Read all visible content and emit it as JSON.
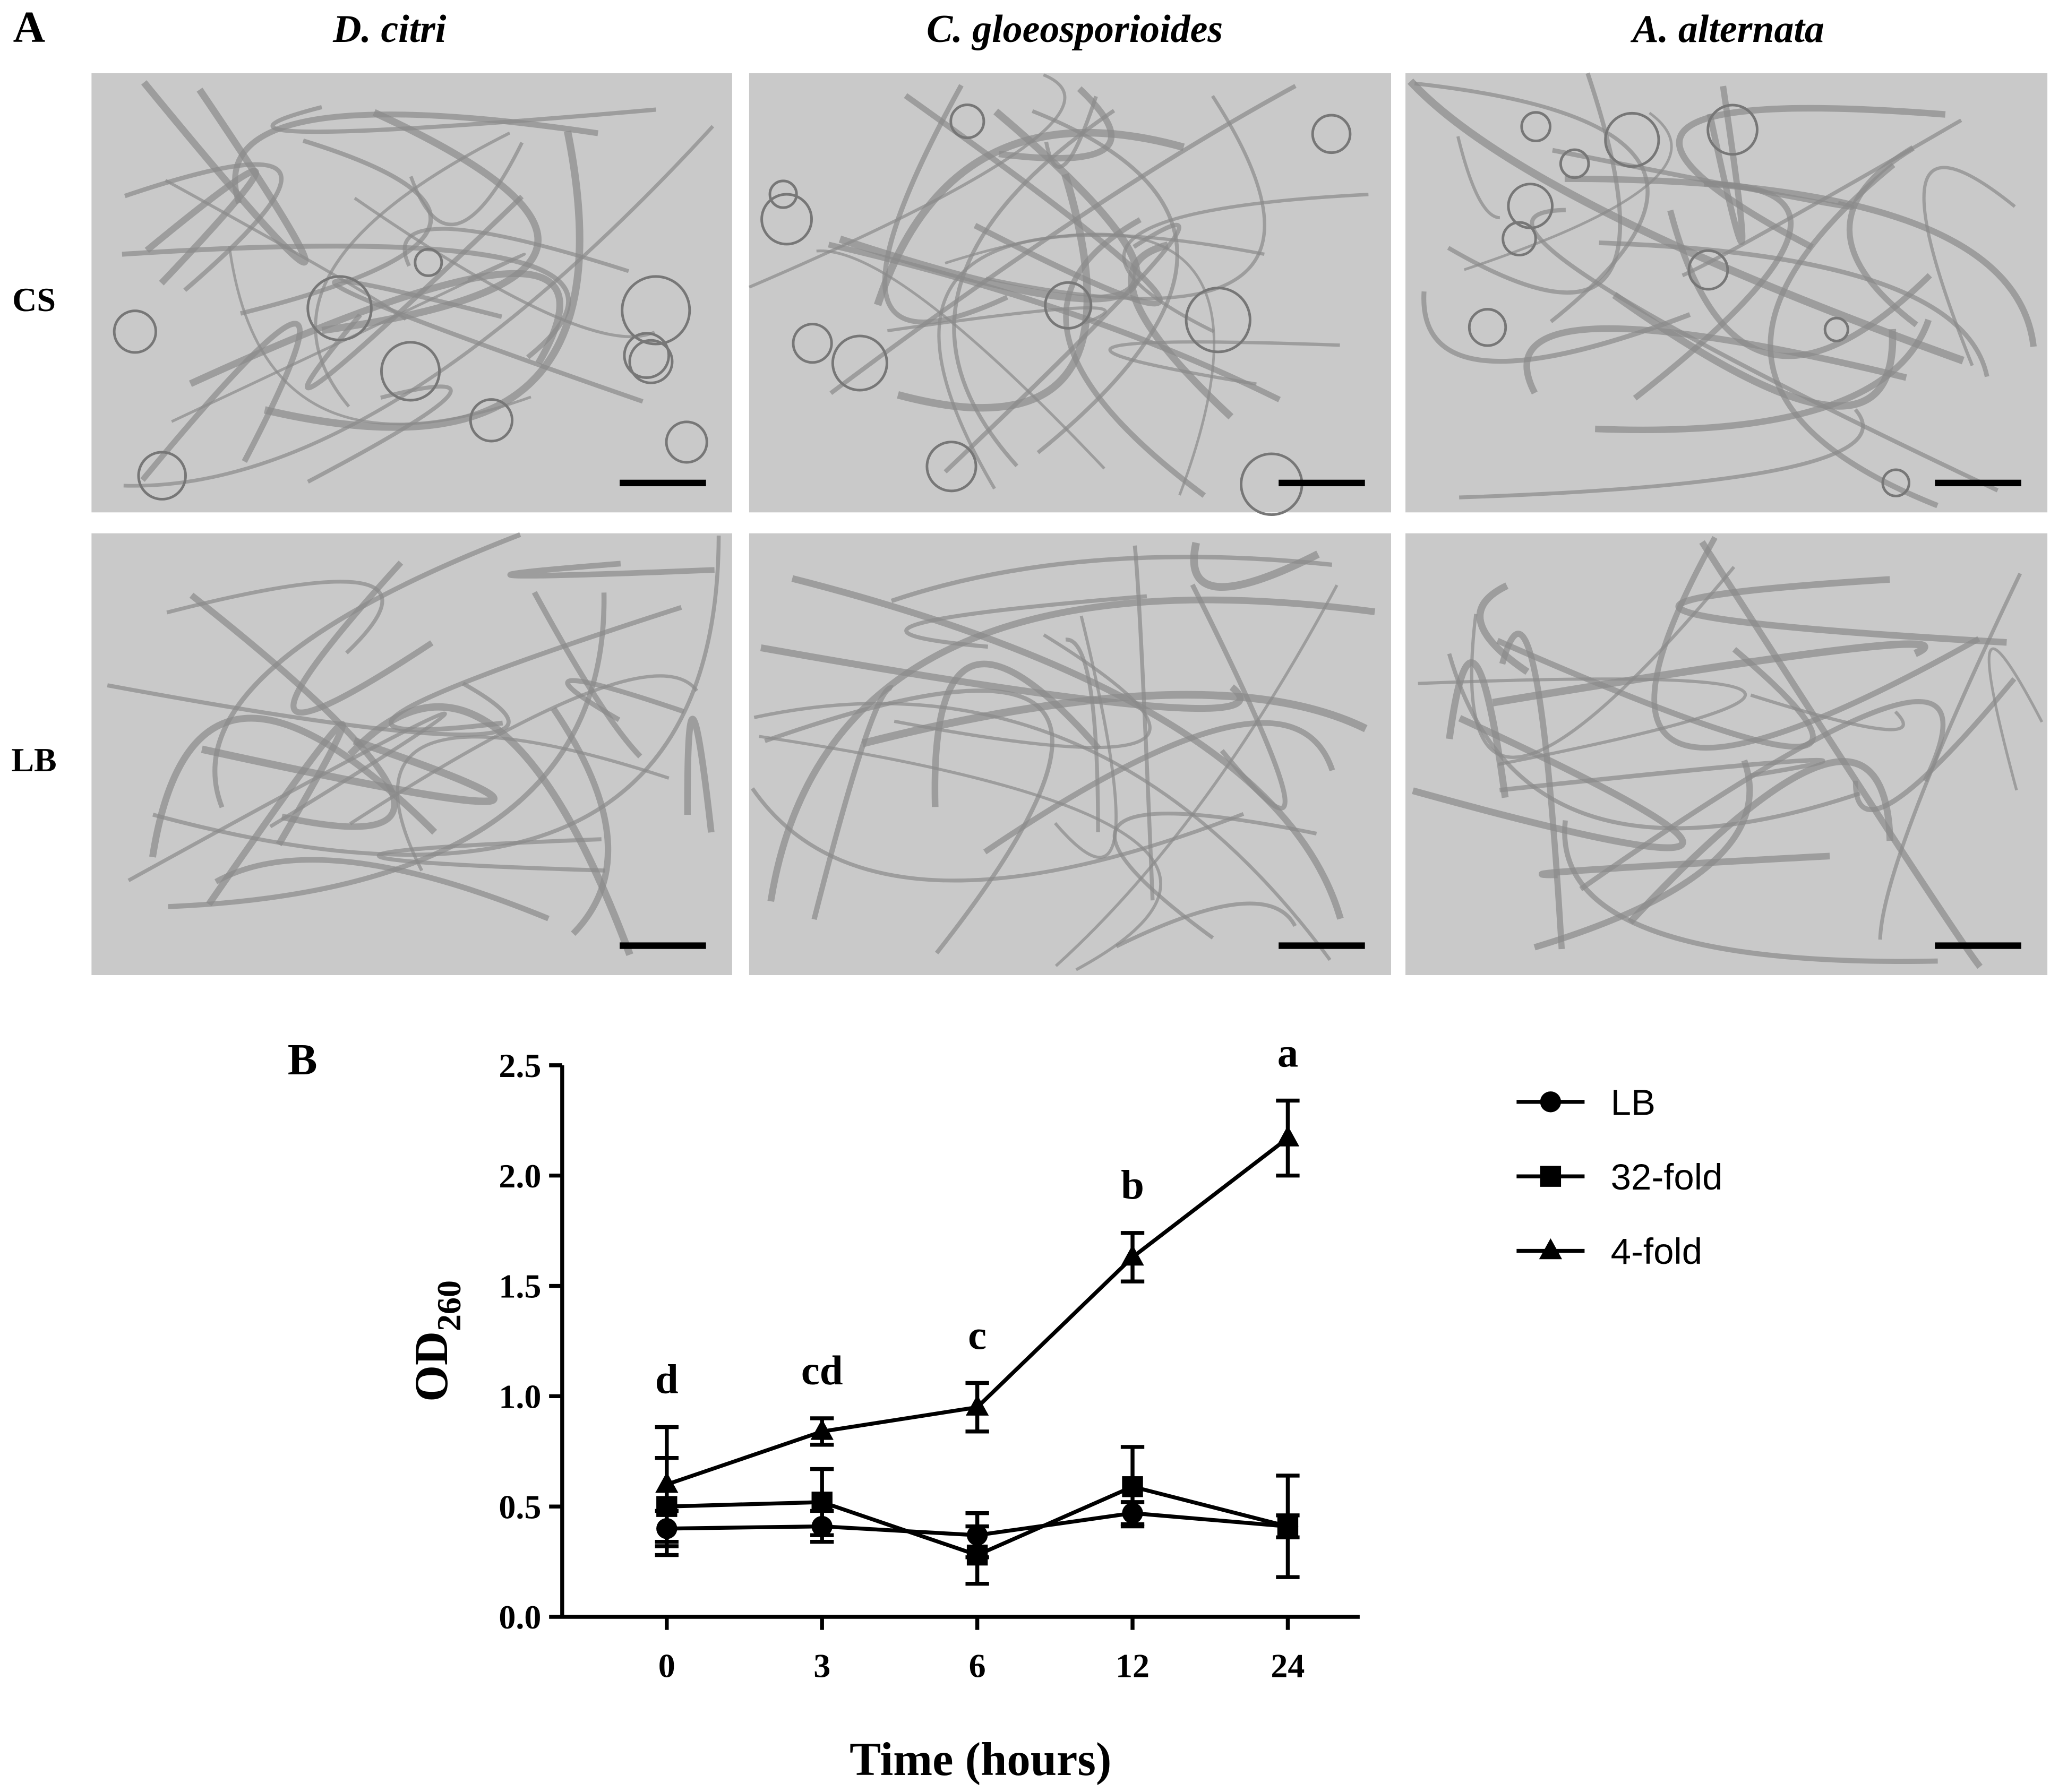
{
  "figure": {
    "panel_a_label": "A",
    "columns": [
      "D. citri",
      "C. gloeosporioides",
      "A. alternata"
    ],
    "rows": [
      "CS",
      "LB"
    ],
    "panel_b_label": "B"
  },
  "chart_data": {
    "type": "line",
    "x_label": "Time (hours)",
    "y_label": "OD",
    "y_label_subscript": "260",
    "categories": [
      "0",
      "3",
      "6",
      "12",
      "24"
    ],
    "ylim": [
      0,
      2.5
    ],
    "yticks": [
      {
        "value": 0,
        "label": "0.0"
      },
      0.5,
      {
        "value": 1,
        "label": "1.0"
      },
      1.5,
      {
        "value": 2,
        "label": "2.0"
      },
      2.5
    ],
    "annotations": [
      "d",
      "cd",
      "c",
      "b",
      "a"
    ],
    "series": [
      {
        "name": "LB",
        "color": "#000000",
        "marker": "circle",
        "values": [
          0.4,
          0.41,
          0.37,
          0.47,
          0.41
        ],
        "errors": [
          0.08,
          0.07,
          0.1,
          0.05,
          0.05
        ]
      },
      {
        "name": "32-fold",
        "color": "#000000",
        "marker": "square",
        "values": [
          0.5,
          0.52,
          0.28,
          0.59,
          0.41
        ],
        "errors": [
          0.22,
          0.15,
          0.13,
          0.18,
          0.23
        ]
      },
      {
        "name": "4-fold",
        "color": "#000000",
        "marker": "triangle",
        "values": [
          0.6,
          0.84,
          0.95,
          1.63,
          2.17
        ],
        "errors": [
          0.26,
          0.06,
          0.11,
          0.11,
          0.17
        ]
      }
    ]
  }
}
